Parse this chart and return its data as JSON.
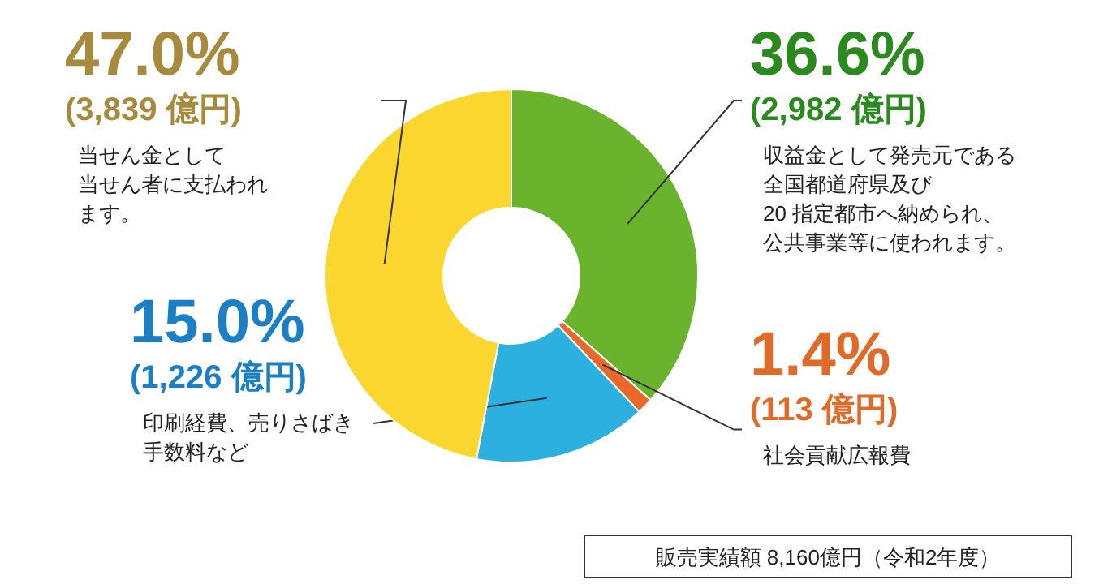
{
  "chart_data": {
    "type": "donut",
    "categories": [
      "収益金として発売元である全国都道府県及び20 指定都市へ納められ、公共事業等に使われます。",
      "社会貢献広報費",
      "印刷経費、売りさばき手数料など",
      "当せん金として当せん者に支払われます。"
    ],
    "values": [
      36.6,
      1.4,
      15.0,
      47.0
    ],
    "colors": [
      "#6ab42d",
      "#e8692a",
      "#2bb0e0",
      "#fbd62e"
    ],
    "value_labels": [
      "36.6%",
      "1.4%",
      "15.0%",
      "47.0%"
    ],
    "annotations": [
      "(2,982 億円)",
      "(113 億円)",
      "(1,226 億円)",
      "(3,839 億円)",
      "販売実績額 8,160億円（令和2年度）"
    ]
  }
}
